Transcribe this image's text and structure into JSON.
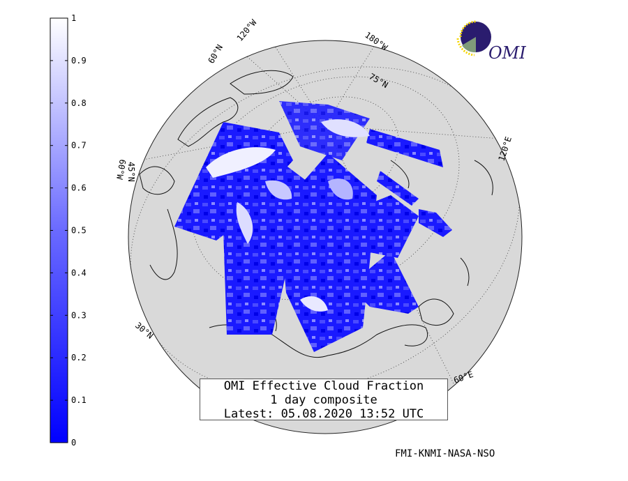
{
  "title": {
    "line1": "OMI Effective Cloud Fraction",
    "line2": "1 day composite",
    "line3": "Latest: 05.08.2020 13:52 UTC"
  },
  "credit": "FMI-KNMI-NASA-NSO",
  "logo": {
    "text": "OMI",
    "icon": "omi-logo-icon"
  },
  "colorbar": {
    "ticks": [
      "0",
      "0.1",
      "0.2",
      "0.3",
      "0.4",
      "0.5",
      "0.6",
      "0.7",
      "0.8",
      "0.9",
      "1"
    ],
    "min_color": "#0000ff",
    "max_color": "#ffffff"
  },
  "grid_labels": {
    "lon_120w": "120°W",
    "lon_180w": "180°W",
    "lon_120e": "120°E",
    "lon_60e": "60°E",
    "lon_60w": "60°W",
    "lat_75n": "75°N",
    "lat_60n": "60°N",
    "lat_45n": "45°N",
    "lat_30n": "30°N"
  },
  "colors": {
    "land": "#d9d9d9",
    "cloud_low": "#0000ff",
    "cloud_high": "#ffffff"
  }
}
